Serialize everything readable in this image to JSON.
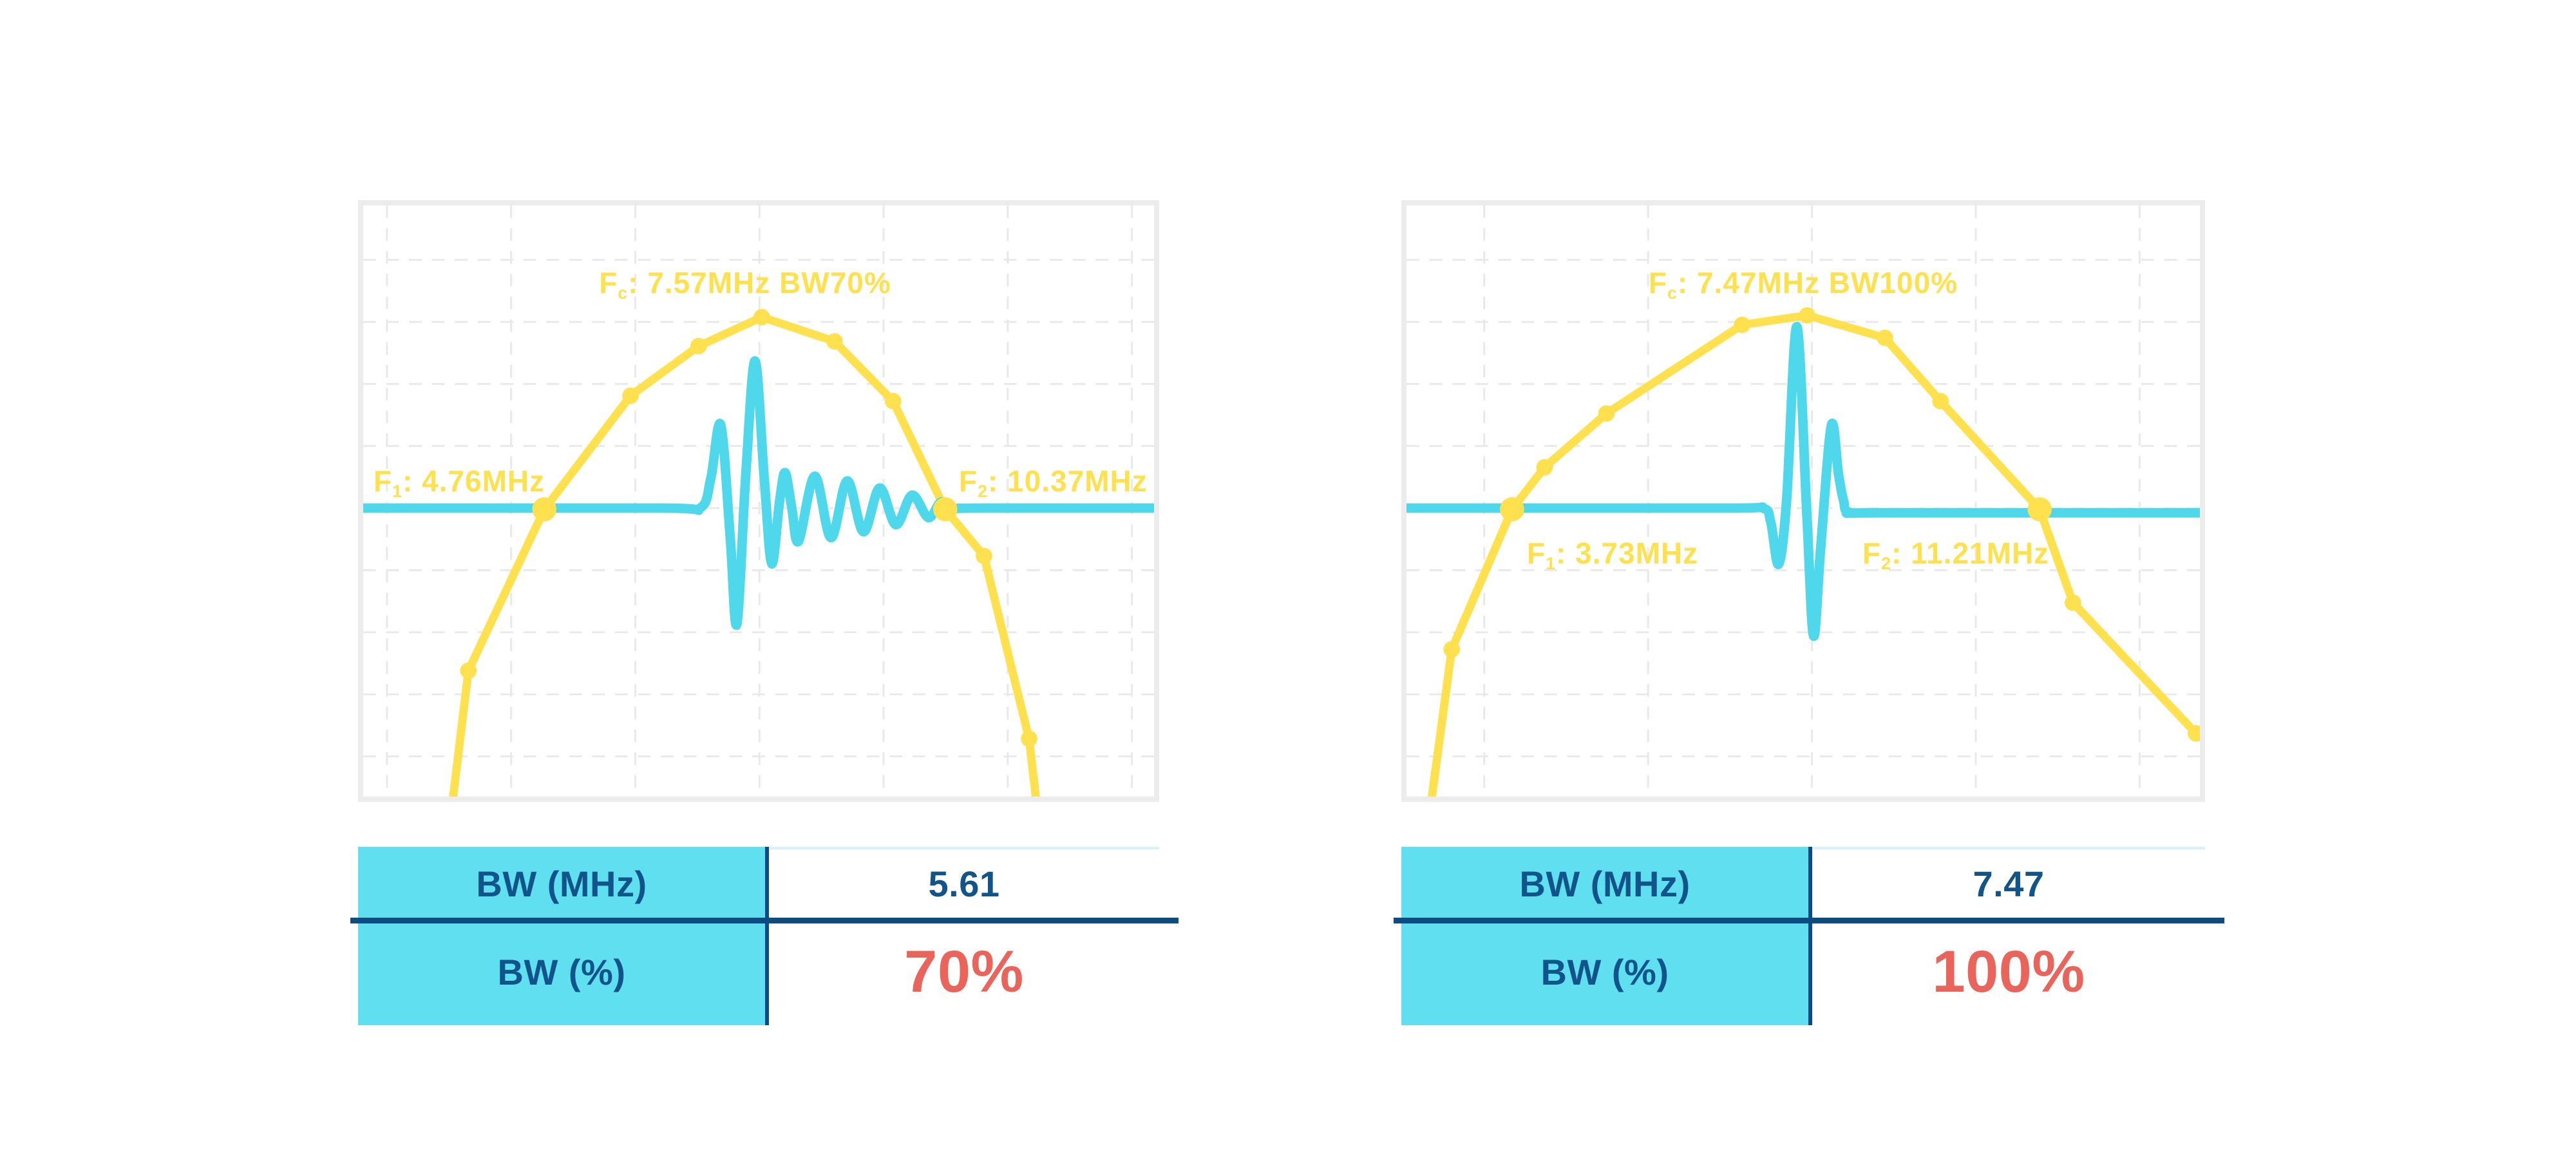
{
  "colors": {
    "yellow": "#FFE14F",
    "cyan": "#4FD8EB",
    "header_bg": "#5FDFEF",
    "navy": "#11548A",
    "rule_navy": "#0C4C83",
    "red": "#E9655C",
    "grid": "#E9E9E9",
    "chart_border": "#ECECEC",
    "light_rule": "#D8EFF8",
    "background": "#FFFFFF"
  },
  "tables": {
    "row1_label": "BW (MHz)",
    "row2_label": "BW (%)",
    "left": {
      "bw_mhz": "5.61",
      "bw_percent": "70%"
    },
    "right": {
      "bw_mhz": "7.47",
      "bw_percent": "100%"
    }
  },
  "chart_data": [
    {
      "type": "line",
      "name": "narrowband-transducer-spectrum",
      "fc_mhz": 7.57,
      "f1_mhz": 4.76,
      "f2_mhz": 10.37,
      "bw_mhz": 5.61,
      "bw_percent": 70,
      "xlabel": "",
      "ylabel": "",
      "axes_labeled": false,
      "grid_on": true,
      "annotations": {
        "fc": {
          "prefix": "F",
          "sub": "c",
          "rest": ": 7.57MHz BW70%"
        },
        "f1": {
          "prefix": "F",
          "sub": "1",
          "rest": ": 4.76MHz"
        },
        "f2": {
          "prefix": "F",
          "sub": "2",
          "rest": ": 10.37MHz"
        }
      },
      "grid": {
        "v_offset": 0.03,
        "v_spacing": 0.157,
        "h_offset": 0.092,
        "h_spacing": 0.105
      },
      "series": [
        {
          "name": "spectrum",
          "color_key": "yellow",
          "stroke_width": 13,
          "smooth": false,
          "points": [
            [
              0.111,
              1.03
            ],
            [
              0.133,
              0.787
            ],
            [
              0.229,
              0.514
            ],
            [
              0.338,
              0.322
            ],
            [
              0.424,
              0.238
            ],
            [
              0.504,
              0.189
            ],
            [
              0.596,
              0.23
            ],
            [
              0.67,
              0.331
            ],
            [
              0.736,
              0.514
            ],
            [
              0.785,
              0.593
            ],
            [
              0.842,
              0.902
            ],
            [
              0.853,
              1.03
            ]
          ]
        },
        {
          "name": "pulse",
          "color_key": "cyan",
          "stroke_width": 15,
          "smooth": true,
          "points": [
            [
              0,
              0.512
            ],
            [
              0.376,
              0.512
            ],
            [
              0.426,
              0.512
            ],
            [
              0.4395,
              0.462
            ],
            [
              0.452,
              0.371
            ],
            [
              0.464,
              0.56
            ],
            [
              0.4725,
              0.708
            ],
            [
              0.484,
              0.45
            ],
            [
              0.4955,
              0.263
            ],
            [
              0.507,
              0.46
            ],
            [
              0.5165,
              0.606
            ],
            [
              0.5265,
              0.5
            ],
            [
              0.5335,
              0.452
            ],
            [
              0.542,
              0.512
            ],
            [
              0.5505,
              0.568
            ],
            [
              0.571,
              0.458
            ],
            [
              0.5915,
              0.562
            ],
            [
              0.612,
              0.466
            ],
            [
              0.6325,
              0.552
            ],
            [
              0.653,
              0.478
            ],
            [
              0.6735,
              0.54
            ],
            [
              0.694,
              0.49
            ],
            [
              0.7145,
              0.528
            ],
            [
              0.73,
              0.502
            ],
            [
              0.74,
              0.512
            ],
            [
              0.78,
              0.512
            ],
            [
              1,
              0.512
            ]
          ]
        }
      ],
      "markers": [
        [
          0.133,
          0.787
        ],
        [
          0.338,
          0.322
        ],
        [
          0.424,
          0.238
        ],
        [
          0.504,
          0.189
        ],
        [
          0.596,
          0.23
        ],
        [
          0.67,
          0.331
        ],
        [
          0.785,
          0.593
        ],
        [
          0.842,
          0.902
        ]
      ],
      "big_markers": [
        [
          0.229,
          0.514
        ],
        [
          0.736,
          0.514
        ]
      ]
    },
    {
      "type": "line",
      "name": "broadband-transducer-spectrum",
      "fc_mhz": 7.47,
      "f1_mhz": 3.73,
      "f2_mhz": 11.21,
      "bw_mhz": 7.47,
      "bw_percent": 100,
      "xlabel": "",
      "ylabel": "",
      "axes_labeled": false,
      "grid_on": true,
      "annotations": {
        "fc": {
          "prefix": "F",
          "sub": "c",
          "rest": ": 7.47MHz BW100%"
        },
        "f1": {
          "prefix": "F",
          "sub": "1",
          "rest": ": 3.73MHz"
        },
        "f2": {
          "prefix": "F",
          "sub": "2",
          "rest": ": 11.21MHz"
        }
      },
      "grid": {
        "v_offset": 0.098,
        "v_spacing": 0.2065,
        "h_offset": 0.092,
        "h_spacing": 0.105
      },
      "series": [
        {
          "name": "spectrum",
          "color_key": "yellow",
          "stroke_width": 13,
          "smooth": false,
          "points": [
            [
              0.029,
              1.03
            ],
            [
              0.057,
              0.751
            ],
            [
              0.133,
              0.514
            ],
            [
              0.174,
              0.443
            ],
            [
              0.252,
              0.352
            ],
            [
              0.423,
              0.202
            ],
            [
              0.505,
              0.186
            ],
            [
              0.603,
              0.224
            ],
            [
              0.673,
              0.331
            ],
            [
              0.798,
              0.514
            ],
            [
              0.84,
              0.672
            ],
            [
              0.995,
              0.893
            ]
          ]
        },
        {
          "name": "pulse",
          "color_key": "cyan",
          "stroke_width": 15,
          "smooth": true,
          "points": [
            [
              0,
              0.512
            ],
            [
              0.4,
              0.512
            ],
            [
              0.449,
              0.512
            ],
            [
              0.459,
              0.535
            ],
            [
              0.469,
              0.607
            ],
            [
              0.479,
              0.5
            ],
            [
              0.492,
              0.205
            ],
            [
              0.5045,
              0.52
            ],
            [
              0.513,
              0.728
            ],
            [
              0.522,
              0.58
            ],
            [
              0.5355,
              0.372
            ],
            [
              0.5445,
              0.455
            ],
            [
              0.551,
              0.5
            ],
            [
              0.558,
              0.519
            ],
            [
              0.6,
              0.52
            ],
            [
              1,
              0.52
            ]
          ]
        }
      ],
      "markers": [
        [
          0.057,
          0.751
        ],
        [
          0.174,
          0.443
        ],
        [
          0.252,
          0.352
        ],
        [
          0.423,
          0.202
        ],
        [
          0.505,
          0.186
        ],
        [
          0.603,
          0.224
        ],
        [
          0.673,
          0.331
        ],
        [
          0.84,
          0.672
        ],
        [
          0.995,
          0.893
        ]
      ],
      "big_markers": [
        [
          0.133,
          0.514
        ],
        [
          0.798,
          0.514
        ]
      ]
    }
  ]
}
